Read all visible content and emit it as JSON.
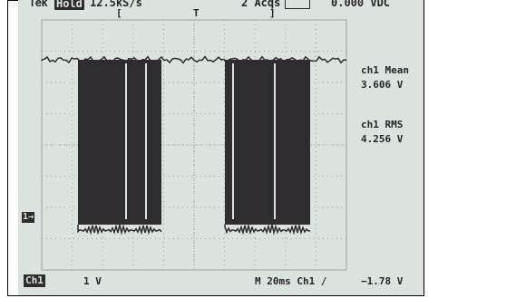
{
  "status_bar": {
    "brand": "Tek",
    "hold_badge": "Hold",
    "sample_rate": "12.5kS/s",
    "acquisitions": "2 Acqs",
    "trigger_icon": "trigger-envelope-icon",
    "dc_readout": "0.000 VDC"
  },
  "top_markers": {
    "left_bracket": "[",
    "trigger": "T",
    "right_bracket": "]"
  },
  "measurements": [
    {
      "label": "ch1 Mean",
      "value": "3.606 V"
    },
    {
      "label": "ch1 RMS",
      "value": "4.256 V"
    }
  ],
  "ground_marker": "1→",
  "bottom_bar": {
    "channel_badge": "Ch1",
    "volts_per_div": "1 V",
    "timebase": "M 20ms Ch1 ∕",
    "trigger_level": "−1.78 V"
  },
  "colors": {
    "screen_bg": "#dbe4dc",
    "trace": "#2f2b30",
    "grid": "#9aa39c"
  }
}
